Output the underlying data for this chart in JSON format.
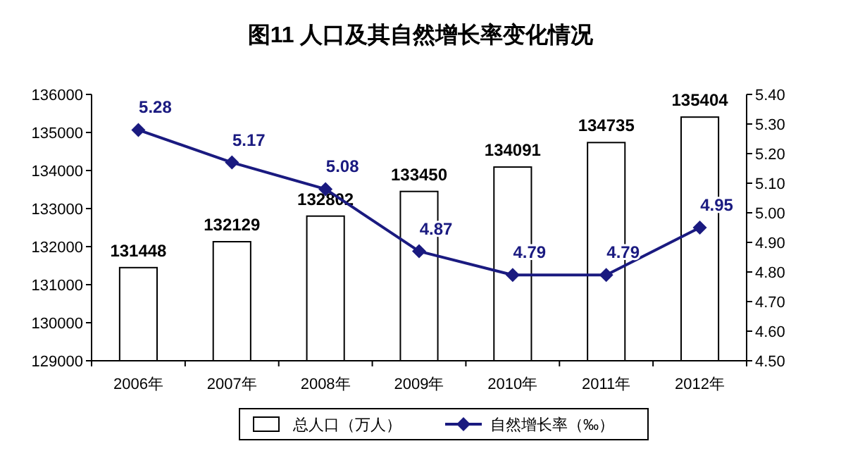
{
  "chart_data": {
    "type": "bar",
    "title": "图11  人口及其自然增长率变化情况",
    "categories": [
      "2006年",
      "2007年",
      "2008年",
      "2009年",
      "2010年",
      "2011年",
      "2012年"
    ],
    "series": [
      {
        "name": "总人口（万人）",
        "color": "#ffffff",
        "values": [
          131448,
          132129,
          132802,
          133450,
          134091,
          134735,
          135404
        ]
      },
      {
        "name": "自然增长率（‰）",
        "type": "line",
        "axis": "y2",
        "color": "#1a1a80",
        "marker": "diamond",
        "values": [
          5.28,
          5.17,
          5.08,
          4.87,
          4.79,
          4.79,
          4.95
        ]
      }
    ],
    "ylim": [
      129000,
      136000
    ],
    "yticks": [
      129000,
      130000,
      131000,
      132000,
      133000,
      134000,
      135000,
      136000
    ],
    "y2lim": [
      4.5,
      5.4
    ],
    "y2ticks": [
      {
        "value": 4.5,
        "label": "4.50"
      },
      {
        "value": 4.6,
        "label": "4.60"
      },
      {
        "value": 4.7,
        "label": "4.70"
      },
      {
        "value": 4.8,
        "label": "4.80"
      },
      {
        "value": 4.9,
        "label": "4.90"
      },
      {
        "value": 5.0,
        "label": "5.00"
      },
      {
        "value": 5.1,
        "label": "5.10"
      },
      {
        "value": 5.2,
        "label": "5.20"
      },
      {
        "value": 5.3,
        "label": "5.30"
      },
      {
        "value": 5.4,
        "label": "5.40"
      }
    ],
    "data_labels": true,
    "legend": "bottom",
    "grid": false
  }
}
